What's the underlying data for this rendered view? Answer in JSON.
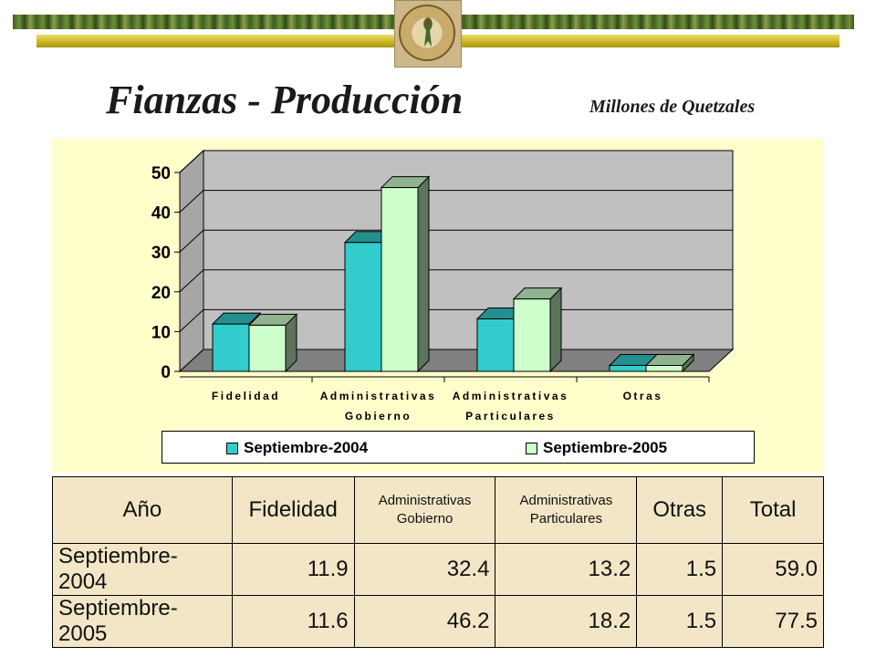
{
  "header": {
    "title": "Fianzas - Producción",
    "subtitle": "Millones de Quetzales"
  },
  "colors": {
    "series_2004": "#33cccc",
    "series_2005": "#ccffcc",
    "plot_bg": "#c0c0c0",
    "panel_bg": "#ffffcc",
    "table_bg": "#f3e6c6"
  },
  "chart_data": {
    "type": "bar",
    "categories": [
      [
        "Fidelidad"
      ],
      [
        "Administrativas",
        "Gobierno"
      ],
      [
        "Administrativas",
        "Particulares"
      ],
      [
        "Otras"
      ]
    ],
    "series": [
      {
        "name": "Septiembre-2004",
        "values": [
          11.9,
          32.4,
          13.2,
          1.5
        ]
      },
      {
        "name": "Septiembre-2005",
        "values": [
          11.6,
          46.2,
          18.2,
          1.5
        ]
      }
    ],
    "ylim": [
      0,
      50
    ],
    "yticks": [
      0,
      10,
      20,
      30,
      40,
      50
    ],
    "grid": true,
    "legend_position": "bottom"
  },
  "table": {
    "headers": [
      [
        "Año"
      ],
      [
        "Fidelidad"
      ],
      [
        "Administrativas",
        "Gobierno"
      ],
      [
        "Administrativas",
        "Particulares"
      ],
      [
        "Otras"
      ],
      [
        "Total"
      ]
    ],
    "rows": [
      {
        "label": "Septiembre-2004",
        "values": [
          "11.9",
          "32.4",
          "13.2",
          "1.5",
          "59.0"
        ]
      },
      {
        "label": "Septiembre-2005",
        "values": [
          "11.6",
          "46.2",
          "18.2",
          "1.5",
          "77.5"
        ]
      }
    ]
  }
}
